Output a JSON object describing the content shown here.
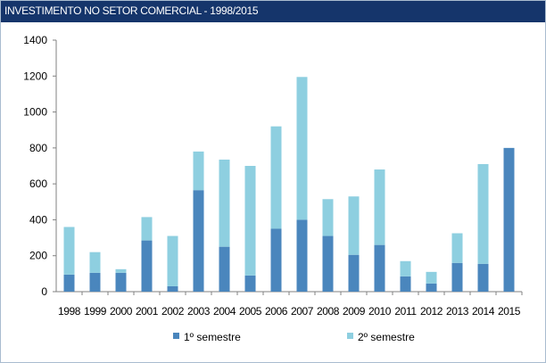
{
  "title": "INVESTIMENTO NO SETOR COMERCIAL - 1998/2015",
  "chart_data": {
    "type": "bar",
    "stacked": true,
    "title": "INVESTIMENTO NO SETOR COMERCIAL - 1998/2015",
    "xlabel": "",
    "ylabel": "",
    "categories": [
      "1998",
      "1999",
      "2000",
      "2001",
      "2002",
      "2003",
      "2004",
      "2005",
      "2006",
      "2007",
      "2008",
      "2009",
      "2010",
      "2011",
      "2012",
      "2013",
      "2014",
      "2015"
    ],
    "series": [
      {
        "name": "1º semestre",
        "color": "#4a86bd",
        "values": [
          95,
          105,
          105,
          285,
          30,
          565,
          250,
          90,
          350,
          400,
          310,
          205,
          260,
          85,
          45,
          160,
          155,
          800
        ]
      },
      {
        "name": "2º semestre",
        "color": "#8ecfe0",
        "values": [
          265,
          115,
          20,
          130,
          280,
          215,
          485,
          610,
          570,
          795,
          205,
          325,
          420,
          85,
          65,
          165,
          555,
          0
        ]
      }
    ],
    "ylim": [
      0,
      1400
    ],
    "yticks": [
      0,
      200,
      400,
      600,
      800,
      1000,
      1200,
      1400
    ],
    "grid": false,
    "legend_position": "bottom"
  }
}
